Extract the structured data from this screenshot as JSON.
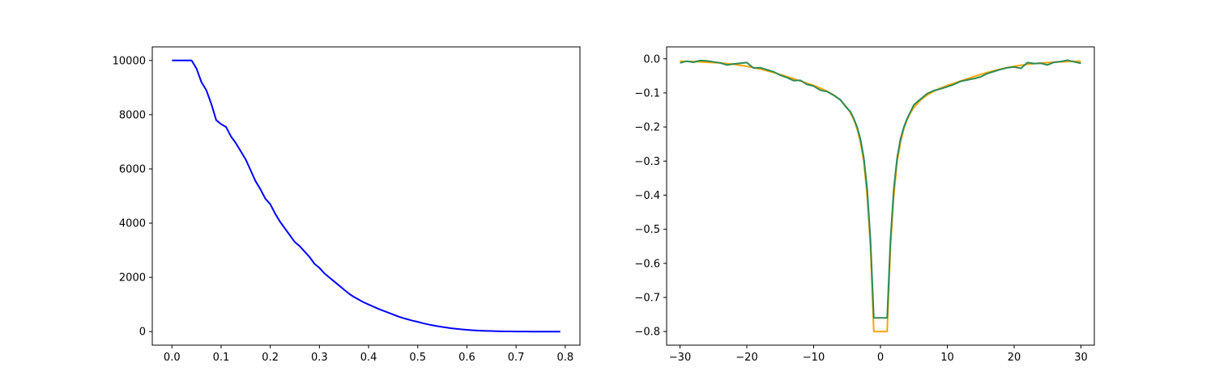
{
  "chart_data": [
    {
      "type": "line",
      "title": "",
      "xlabel": "",
      "ylabel": "",
      "xlim": [
        -0.04,
        0.83
      ],
      "ylim": [
        -500,
        10500
      ],
      "xticks": [
        0.0,
        0.1,
        0.2,
        0.3,
        0.4,
        0.5,
        0.6,
        0.7,
        0.8
      ],
      "xtick_labels": [
        "0.0",
        "0.1",
        "0.2",
        "0.3",
        "0.4",
        "0.5",
        "0.6",
        "0.7",
        "0.8"
      ],
      "yticks": [
        0,
        2000,
        4000,
        6000,
        8000,
        10000
      ],
      "ytick_labels": [
        "0",
        "2000",
        "4000",
        "6000",
        "8000",
        "10000"
      ],
      "grid": false,
      "legend": "none",
      "series": [
        {
          "color": "#0000ff",
          "x": [
            0.0,
            0.01,
            0.02,
            0.03,
            0.04,
            0.05,
            0.06,
            0.07,
            0.08,
            0.09,
            0.1,
            0.11,
            0.12,
            0.13,
            0.14,
            0.15,
            0.16,
            0.17,
            0.18,
            0.19,
            0.2,
            0.21,
            0.22,
            0.23,
            0.24,
            0.25,
            0.26,
            0.27,
            0.28,
            0.29,
            0.3,
            0.31,
            0.32,
            0.33,
            0.34,
            0.35,
            0.36,
            0.37,
            0.38,
            0.39,
            0.4,
            0.41,
            0.42,
            0.43,
            0.44,
            0.45,
            0.46,
            0.47,
            0.48,
            0.49,
            0.5,
            0.51,
            0.52,
            0.53,
            0.54,
            0.55,
            0.56,
            0.57,
            0.58,
            0.59,
            0.6,
            0.61,
            0.62,
            0.63,
            0.64,
            0.65,
            0.66,
            0.67,
            0.68,
            0.69,
            0.7,
            0.71,
            0.72,
            0.73,
            0.74,
            0.75,
            0.76,
            0.77,
            0.78,
            0.79
          ],
          "y": [
            10000,
            10000,
            10000,
            10000,
            10000,
            9700,
            9200,
            8900,
            8400,
            7800,
            7650,
            7550,
            7200,
            6950,
            6650,
            6350,
            5950,
            5550,
            5250,
            4900,
            4700,
            4350,
            4050,
            3800,
            3550,
            3300,
            3150,
            2950,
            2750,
            2500,
            2350,
            2150,
            2000,
            1850,
            1700,
            1550,
            1400,
            1280,
            1180,
            1080,
            1000,
            920,
            840,
            770,
            700,
            630,
            560,
            500,
            450,
            400,
            360,
            310,
            270,
            235,
            200,
            170,
            145,
            120,
            100,
            80,
            65,
            52,
            42,
            33,
            26,
            20,
            15,
            11,
            8,
            6,
            4,
            3,
            2,
            1,
            1,
            0,
            0,
            0,
            0,
            0
          ]
        }
      ]
    },
    {
      "type": "line",
      "title": "",
      "xlabel": "",
      "ylabel": "",
      "xlim": [
        -32,
        32
      ],
      "ylim": [
        -0.84,
        0.035
      ],
      "xticks": [
        -30,
        -20,
        -10,
        0,
        10,
        20,
        30
      ],
      "xtick_labels": [
        "−30",
        "−20",
        "−10",
        "0",
        "10",
        "20",
        "30"
      ],
      "yticks": [
        0.0,
        -0.1,
        -0.2,
        -0.3,
        -0.4,
        -0.5,
        -0.6,
        -0.7,
        -0.8
      ],
      "ytick_labels": [
        "0.0",
        "−0.1",
        "−0.2",
        "−0.3",
        "−0.4",
        "−0.5",
        "−0.6",
        "−0.7",
        "−0.8"
      ],
      "grid": false,
      "legend": "none",
      "series": [
        {
          "color": "#ffa500",
          "x": [
            -30,
            -28,
            -26,
            -24,
            -22,
            -20,
            -18,
            -16,
            -14,
            -12,
            -10,
            -9,
            -8,
            -7,
            -6,
            -5,
            -4.5,
            -4,
            -3.5,
            -3,
            -2.5,
            -2,
            -1.5,
            -1,
            1,
            1.5,
            2,
            2.5,
            3,
            3.5,
            4,
            4.5,
            5,
            6,
            7,
            8,
            9,
            10,
            12,
            14,
            16,
            18,
            20,
            22,
            24,
            26,
            28,
            30
          ],
          "y": [
            -0.007,
            -0.008,
            -0.01,
            -0.012,
            -0.016,
            -0.022,
            -0.03,
            -0.04,
            -0.052,
            -0.065,
            -0.078,
            -0.086,
            -0.095,
            -0.106,
            -0.121,
            -0.143,
            -0.158,
            -0.178,
            -0.205,
            -0.245,
            -0.3,
            -0.4,
            -0.55,
            -0.8,
            -0.8,
            -0.55,
            -0.4,
            -0.3,
            -0.245,
            -0.205,
            -0.178,
            -0.158,
            -0.143,
            -0.121,
            -0.106,
            -0.095,
            -0.086,
            -0.078,
            -0.065,
            -0.052,
            -0.04,
            -0.03,
            -0.022,
            -0.016,
            -0.012,
            -0.01,
            -0.008,
            -0.007
          ]
        },
        {
          "color": "#2e8b57",
          "x": [
            -30,
            -29,
            -28,
            -27,
            -26,
            -25,
            -24,
            -23,
            -22,
            -21,
            -20,
            -19,
            -18,
            -17,
            -16,
            -15,
            -14,
            -13,
            -12,
            -11,
            -10,
            -9,
            -8,
            -7,
            -6,
            -5,
            -4.5,
            -4,
            -3.5,
            -3,
            -2.5,
            -2,
            -1.5,
            -1,
            1,
            1.5,
            2,
            2.5,
            3,
            3.5,
            4,
            4.5,
            5,
            6,
            7,
            8,
            9,
            10,
            11,
            12,
            13,
            14,
            15,
            16,
            17,
            18,
            19,
            20,
            21,
            22,
            23,
            24,
            25,
            26,
            27,
            28,
            29,
            30
          ],
          "y": [
            -0.012,
            -0.007,
            -0.01,
            -0.005,
            -0.006,
            -0.009,
            -0.012,
            -0.018,
            -0.015,
            -0.013,
            -0.011,
            -0.027,
            -0.026,
            -0.032,
            -0.038,
            -0.048,
            -0.055,
            -0.064,
            -0.063,
            -0.075,
            -0.08,
            -0.092,
            -0.096,
            -0.107,
            -0.12,
            -0.145,
            -0.155,
            -0.175,
            -0.2,
            -0.235,
            -0.29,
            -0.38,
            -0.53,
            -0.76,
            -0.76,
            -0.53,
            -0.38,
            -0.29,
            -0.235,
            -0.2,
            -0.175,
            -0.155,
            -0.135,
            -0.118,
            -0.102,
            -0.093,
            -0.088,
            -0.082,
            -0.075,
            -0.066,
            -0.062,
            -0.058,
            -0.053,
            -0.043,
            -0.037,
            -0.031,
            -0.026,
            -0.024,
            -0.028,
            -0.011,
            -0.014,
            -0.013,
            -0.018,
            -0.01,
            -0.008,
            -0.004,
            -0.009,
            -0.013
          ]
        }
      ]
    }
  ]
}
